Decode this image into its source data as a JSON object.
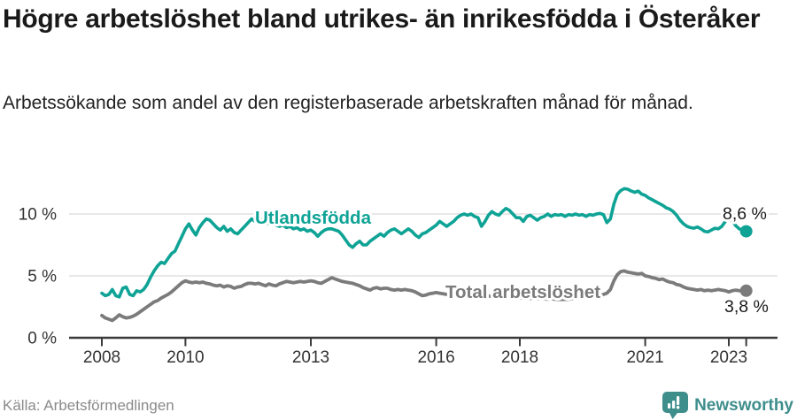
{
  "header": {
    "title": "Högre arbetslöshet bland utrikes- än inrikesfödda i Österåker",
    "subtitle": "Arbetssökande som andel av den registerbaserade arbetskraften månad för månad."
  },
  "footer": {
    "source": "Källa: Arbetsförmedlingen",
    "brand": "Newsworthy"
  },
  "colors": {
    "accent_teal": "#0fa396",
    "series_gray": "#7b7b7b",
    "gridline": "#d9d9d9",
    "axis": "#3a3a3a",
    "tick_label": "#333333",
    "value_label": "#1a1a1a",
    "brand_teal": "#3e8e8c"
  },
  "chart_data": {
    "type": "line",
    "title": "Högre arbetslöshet bland utrikes- än inrikesfödda i Österåker",
    "unit": "%",
    "x_start_year": 2008.0,
    "x_interval": "monthly",
    "xlim": [
      2008,
      2023.5
    ],
    "ylim": [
      0,
      13
    ],
    "grid": "horizontal",
    "legend_position": "inline-labels",
    "x_ticks": [
      {
        "value": 2008,
        "label": "2008"
      },
      {
        "value": 2010,
        "label": "2010"
      },
      {
        "value": 2013,
        "label": "2013"
      },
      {
        "value": 2016,
        "label": "2016"
      },
      {
        "value": 2018,
        "label": "2018"
      },
      {
        "value": 2021,
        "label": "2021"
      },
      {
        "value": 2023,
        "label": "2023"
      }
    ],
    "y_ticks": [
      {
        "value": 0,
        "label": "0 %"
      },
      {
        "value": 5,
        "label": "5 %"
      },
      {
        "value": 10,
        "label": "10 %"
      }
    ],
    "series": [
      {
        "name": "Utlandsfödda",
        "color": "#0fa396",
        "end_value": 8.6,
        "end_label": "8,6 %",
        "values": [
          3.6,
          3.4,
          3.5,
          3.9,
          3.4,
          3.3,
          4.0,
          4.1,
          3.5,
          3.4,
          3.8,
          3.7,
          3.9,
          4.3,
          4.9,
          5.4,
          5.8,
          6.1,
          6.0,
          6.4,
          6.8,
          7.0,
          7.6,
          8.2,
          8.8,
          9.2,
          8.7,
          8.3,
          8.9,
          9.3,
          9.6,
          9.5,
          9.2,
          8.9,
          8.7,
          9.0,
          8.6,
          8.8,
          8.5,
          8.4,
          8.7,
          9.0,
          9.3,
          9.6,
          9.4,
          9.7,
          9.5,
          9.3,
          9.2,
          9.3,
          9.1,
          9.0,
          9.1,
          8.9,
          9.0,
          8.8,
          8.9,
          8.7,
          8.8,
          8.6,
          8.7,
          8.5,
          8.2,
          8.5,
          8.7,
          8.8,
          8.8,
          8.7,
          8.6,
          8.3,
          7.9,
          7.5,
          7.3,
          7.6,
          7.8,
          7.5,
          7.5,
          7.8,
          8.0,
          8.2,
          8.4,
          8.2,
          8.5,
          8.7,
          8.8,
          8.6,
          8.4,
          8.6,
          8.8,
          8.6,
          8.3,
          8.1,
          8.4,
          8.5,
          8.7,
          8.9,
          9.1,
          9.4,
          9.2,
          9.0,
          9.2,
          9.4,
          9.7,
          9.9,
          10.0,
          9.9,
          10.0,
          9.8,
          9.7,
          9.0,
          9.4,
          9.9,
          10.2,
          10.0,
          9.9,
          10.2,
          10.45,
          10.3,
          10.0,
          9.7,
          9.7,
          9.4,
          9.8,
          9.9,
          9.7,
          9.5,
          9.7,
          9.8,
          10.0,
          9.8,
          9.95,
          9.9,
          9.95,
          9.8,
          9.95,
          9.9,
          10.0,
          9.9,
          9.95,
          9.8,
          9.95,
          9.9,
          10.0,
          10.05,
          9.95,
          9.3,
          9.6,
          10.8,
          11.6,
          11.9,
          12.05,
          12.0,
          11.85,
          11.75,
          11.85,
          11.6,
          11.5,
          11.3,
          11.15,
          11.0,
          10.85,
          10.7,
          10.5,
          10.4,
          10.2,
          9.9,
          9.5,
          9.2,
          9.0,
          8.9,
          8.85,
          8.95,
          8.8,
          8.6,
          8.55,
          8.7,
          8.85,
          8.8,
          9.0,
          9.4,
          9.9,
          9.45,
          9.05,
          8.8,
          8.7,
          8.6
        ]
      },
      {
        "name": "Total arbetslöshet",
        "color": "#7b7b7b",
        "end_value": 3.8,
        "end_label": "3,8 %",
        "values": [
          1.8,
          1.6,
          1.5,
          1.4,
          1.6,
          1.85,
          1.7,
          1.6,
          1.65,
          1.75,
          1.9,
          2.1,
          2.3,
          2.5,
          2.7,
          2.9,
          3.0,
          3.2,
          3.35,
          3.5,
          3.7,
          3.95,
          4.2,
          4.45,
          4.6,
          4.5,
          4.45,
          4.5,
          4.45,
          4.5,
          4.4,
          4.35,
          4.25,
          4.2,
          4.25,
          4.1,
          4.2,
          4.15,
          4.0,
          4.1,
          4.15,
          4.3,
          4.4,
          4.4,
          4.35,
          4.4,
          4.3,
          4.2,
          4.35,
          4.25,
          4.2,
          4.35,
          4.45,
          4.55,
          4.5,
          4.45,
          4.5,
          4.55,
          4.5,
          4.55,
          4.6,
          4.55,
          4.45,
          4.4,
          4.55,
          4.7,
          4.85,
          4.75,
          4.65,
          4.55,
          4.5,
          4.45,
          4.4,
          4.3,
          4.2,
          4.05,
          3.95,
          3.85,
          4.0,
          4.05,
          3.95,
          4.0,
          4.0,
          3.9,
          3.85,
          3.9,
          3.85,
          3.9,
          3.85,
          3.8,
          3.7,
          3.55,
          3.4,
          3.45,
          3.55,
          3.6,
          3.65,
          3.6,
          3.55,
          3.5,
          3.55,
          3.6,
          3.55,
          3.5,
          3.45,
          3.5,
          3.45,
          3.5,
          3.45,
          3.4,
          3.4,
          3.38,
          3.35,
          3.33,
          3.35,
          3.3,
          3.28,
          3.3,
          3.27,
          3.25,
          3.25,
          3.2,
          3.2,
          3.18,
          3.2,
          3.15,
          3.18,
          3.15,
          3.12,
          3.15,
          3.12,
          3.1,
          3.1,
          3.1,
          3.12,
          3.15,
          3.18,
          3.2,
          3.22,
          3.25,
          3.3,
          3.32,
          3.35,
          3.4,
          3.5,
          3.6,
          3.9,
          4.6,
          5.1,
          5.35,
          5.4,
          5.3,
          5.25,
          5.2,
          5.15,
          5.2,
          5.0,
          4.95,
          4.85,
          4.8,
          4.7,
          4.75,
          4.6,
          4.5,
          4.45,
          4.3,
          4.25,
          4.1,
          4.0,
          3.95,
          3.9,
          3.85,
          3.9,
          3.8,
          3.85,
          3.8,
          3.85,
          3.9,
          3.85,
          3.8,
          3.7,
          3.8,
          3.85,
          3.8,
          3.82,
          3.8
        ]
      }
    ]
  }
}
